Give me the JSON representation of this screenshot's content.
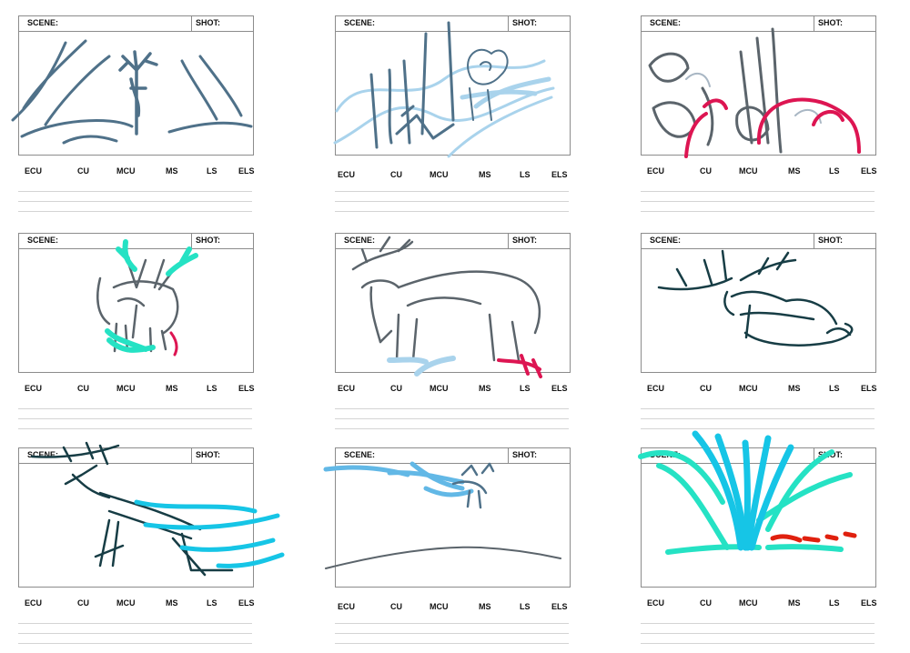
{
  "panel_header": {
    "scene_label": "SCENE:",
    "shot_label": "SHOT:"
  },
  "shot_sizes": [
    "ECU",
    "CU",
    "MCU",
    "MS",
    "LS",
    "ELS"
  ],
  "colors": {
    "slate": "#4f7189",
    "dark_teal": "#173d45",
    "gray": "#5b646b",
    "light_blue": "#a9d3ec",
    "sky_blue": "#62b8e6",
    "cyan": "#16c5e6",
    "aqua": "#25e2c4",
    "crimson": "#dd1552",
    "red": "#e0200e"
  },
  "panels": [
    {
      "id": 1,
      "drawing": "deer-in-forest-icon"
    },
    {
      "id": 2,
      "drawing": "deer-behind-trees-with-wind-icon"
    },
    {
      "id": 3,
      "drawing": "deer-closeup-with-red-strokes-icon"
    },
    {
      "id": 4,
      "drawing": "deer-front-with-aqua-antlers-icon"
    },
    {
      "id": 5,
      "drawing": "deer-grazing-side-view-icon"
    },
    {
      "id": 6,
      "drawing": "deer-lying-down-icon"
    },
    {
      "id": 7,
      "drawing": "deer-running-with-wind-icon"
    },
    {
      "id": 8,
      "drawing": "deer-in-distance-icon"
    },
    {
      "id": 9,
      "drawing": "grass-tuft-icon"
    }
  ]
}
